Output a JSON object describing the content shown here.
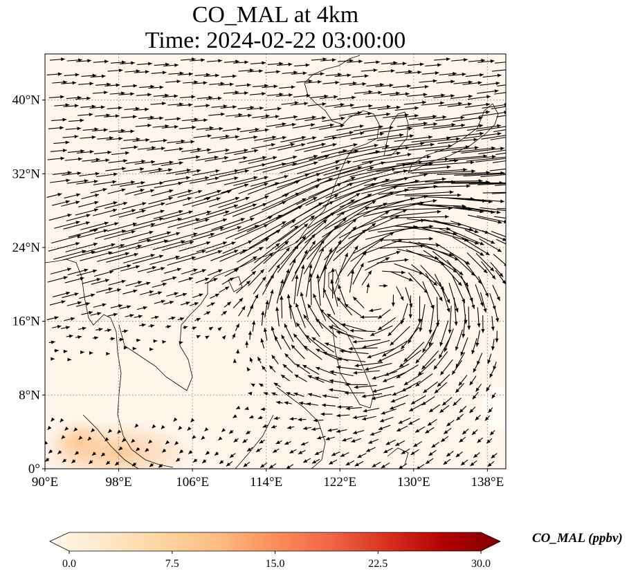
{
  "title_line1": "CO_MAL at 4km",
  "title_line2": "Time: 2024-02-22 03:00:00",
  "map": {
    "lon_range": [
      90,
      140
    ],
    "lat_range": [
      0,
      45
    ],
    "lon_ticks": [
      90,
      98,
      106,
      114,
      122,
      130,
      138
    ],
    "lat_ticks": [
      0,
      8,
      16,
      24,
      32,
      40
    ],
    "lon_tick_labels": [
      "90°E",
      "98°E",
      "106°E",
      "114°E",
      "122°E",
      "130°E",
      "138°E"
    ],
    "lat_tick_labels": [
      "0°",
      "8°N",
      "16°N",
      "24°N",
      "32°N",
      "40°N"
    ],
    "gridlines": true,
    "background_color": "#fff5eb",
    "field_note_colors": [
      "#fddbb3",
      "#fdc08a"
    ]
  },
  "colorbar": {
    "label": "CO_MAL (ppbv)",
    "min": 0.0,
    "max": 30.0,
    "ticks": [
      "0.0",
      "7.5",
      "15.0",
      "22.5",
      "30.0"
    ],
    "tick_values": [
      0.0,
      7.5,
      15.0,
      22.5,
      30.0
    ],
    "colormap": "OrRd",
    "colors": [
      "#fff7ec",
      "#fee8c8",
      "#fdd49e",
      "#fdbb84",
      "#fc8d59",
      "#ef6548",
      "#d7301f",
      "#b30000",
      "#7f0000"
    ],
    "extend": "both"
  }
}
